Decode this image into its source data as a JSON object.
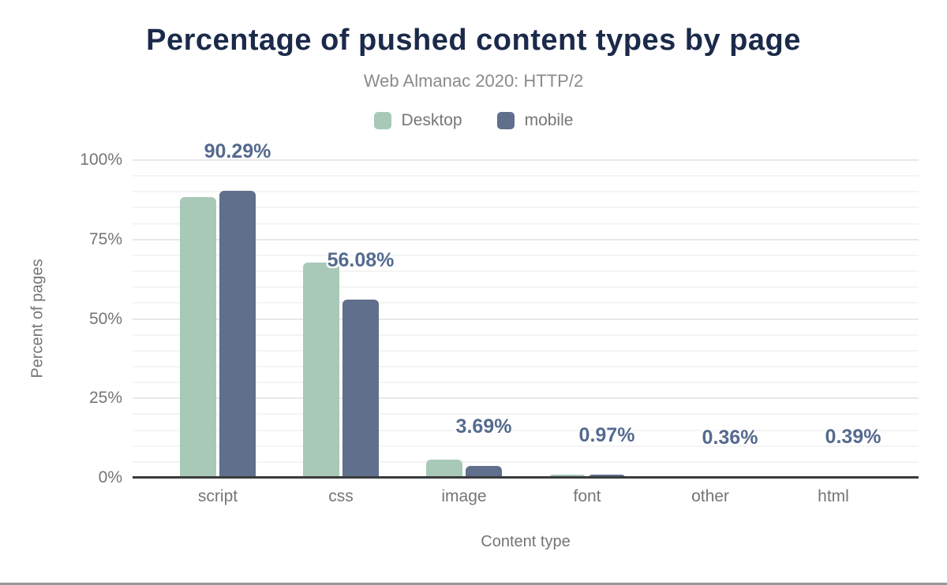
{
  "header": {
    "title": "Percentage of pushed content types by page",
    "subtitle": "Web Almanac 2020: HTTP/2"
  },
  "legend": [
    {
      "label": "Desktop",
      "color": "#a8c9b8"
    },
    {
      "label": "mobile",
      "color": "#5f6f8c"
    }
  ],
  "chart_data": {
    "type": "bar",
    "title": "Percentage of pushed content types by page",
    "subtitle": "Web Almanac 2020: HTTP/2",
    "categories": [
      "script",
      "css",
      "image",
      "font",
      "other",
      "html"
    ],
    "series": [
      {
        "name": "Desktop",
        "color": "#a8c9b8",
        "values": [
          88.4,
          67.7,
          5.6,
          1.1,
          0.5,
          0.5
        ]
      },
      {
        "name": "mobile",
        "color": "#5f6f8c",
        "values": [
          90.29,
          56.08,
          3.69,
          0.97,
          0.36,
          0.39
        ]
      }
    ],
    "value_labels": [
      "90.29%",
      "56.08%",
      "3.69%",
      "0.97%",
      "0.36%",
      "0.39%"
    ],
    "value_labels_series": "mobile",
    "xlabel": "Content type",
    "ylabel": "Percent of pages",
    "ylim": [
      0,
      100
    ],
    "yticks": [
      {
        "pct": 0,
        "label": "0%"
      },
      {
        "pct": 25,
        "label": "25%"
      },
      {
        "pct": 50,
        "label": "50%"
      },
      {
        "pct": 75,
        "label": "75%"
      },
      {
        "pct": 100,
        "label": "100%"
      }
    ],
    "grid": {
      "minor_step_pct": 5,
      "major_step_pct": 25,
      "orientation": "horizontal"
    },
    "legend_position": "top-center",
    "colors": {
      "title": "#1b2a4a",
      "subtitle": "#8b8b8b",
      "axis_text": "#757575",
      "value_label": "#556a8e",
      "baseline": "#3a3b3d"
    }
  }
}
